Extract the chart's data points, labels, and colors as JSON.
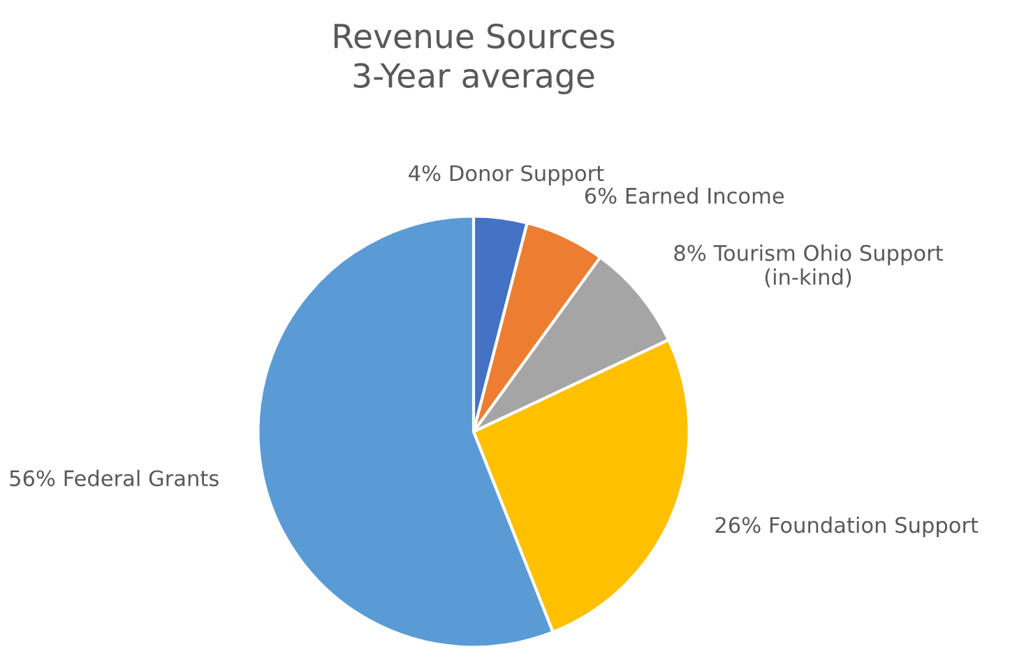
{
  "chart_data": {
    "type": "pie",
    "title": "Revenue Sources\n3-Year average",
    "categories": [
      "Donor Support",
      "Earned Income",
      "Tourism Ohio Support\n(in-kind)",
      "Foundation Support",
      "Federal Grants"
    ],
    "values": [
      4,
      6,
      8,
      26,
      56
    ],
    "value_labels": [
      "4%",
      "6%",
      "8%",
      "26%",
      "56%"
    ],
    "colors": [
      "#4472c4",
      "#ed7d31",
      "#a5a5a5",
      "#ffc000",
      "#5b9bd5"
    ]
  }
}
